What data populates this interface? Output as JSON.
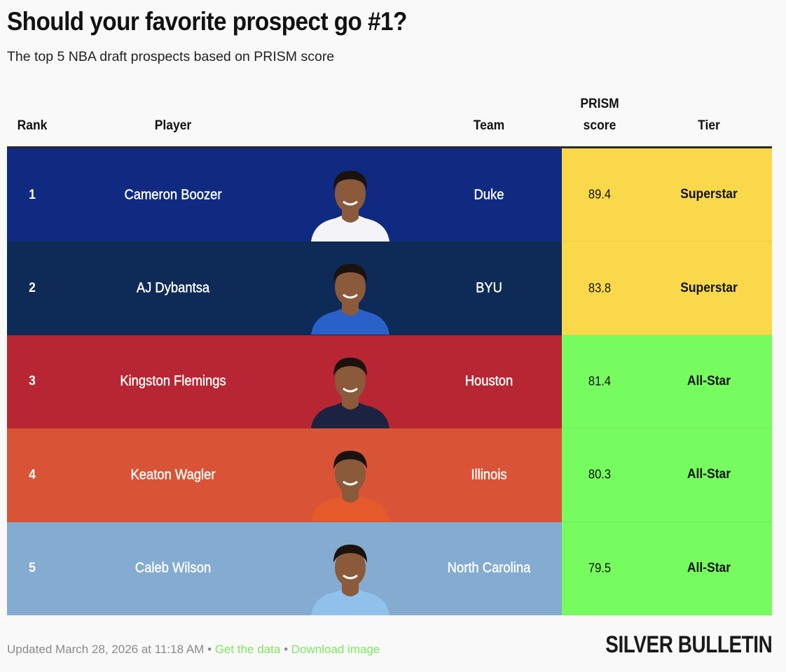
{
  "header": {
    "title": "Should your favorite prospect go #1?",
    "subtitle": "The top 5 NBA draft prospects based on PRISM score"
  },
  "table": {
    "columns": {
      "rank": "Rank",
      "player": "Player",
      "team": "Team",
      "score_line1": "PRISM",
      "score_line2": "score",
      "tier": "Tier"
    },
    "rows": [
      {
        "rank": "1",
        "player": "Cameron Boozer",
        "team": "Duke",
        "score": "89.4",
        "tier": "Superstar",
        "row_color": "#0f2a80",
        "tier_color": "#f9d949",
        "jersey_color": "#f4f4f8",
        "headshot": "player-headshot"
      },
      {
        "rank": "2",
        "player": "AJ Dybantsa",
        "team": "BYU",
        "score": "83.8",
        "tier": "Superstar",
        "row_color": "#0e2a56",
        "tier_color": "#f9d949",
        "jersey_color": "#2a61c9",
        "headshot": "player-headshot"
      },
      {
        "rank": "3",
        "player": "Kingston Flemings",
        "team": "Houston",
        "score": "81.4",
        "tier": "All-Star",
        "row_color": "#b72632",
        "tier_color": "#77fc5f",
        "jersey_color": "#1c2340",
        "headshot": "player-headshot"
      },
      {
        "rank": "4",
        "player": "Keaton Wagler",
        "team": "Illinois",
        "score": "80.3",
        "tier": "All-Star",
        "row_color": "#d95436",
        "tier_color": "#77fc5f",
        "jersey_color": "#e55a2b",
        "headshot": "player-headshot"
      },
      {
        "rank": "5",
        "player": "Caleb Wilson",
        "team": "North Carolina",
        "score": "79.5",
        "tier": "All-Star",
        "row_color": "#84abd0",
        "tier_color": "#77fc5f",
        "jersey_color": "#8fc1ec",
        "headshot": "player-headshot"
      }
    ]
  },
  "footer": {
    "updated": "Updated March 28, 2026 at 11:18 AM",
    "separator": "•",
    "get_data": "Get the data",
    "download": "Download image",
    "brand": "SILVER BULLETIN"
  }
}
